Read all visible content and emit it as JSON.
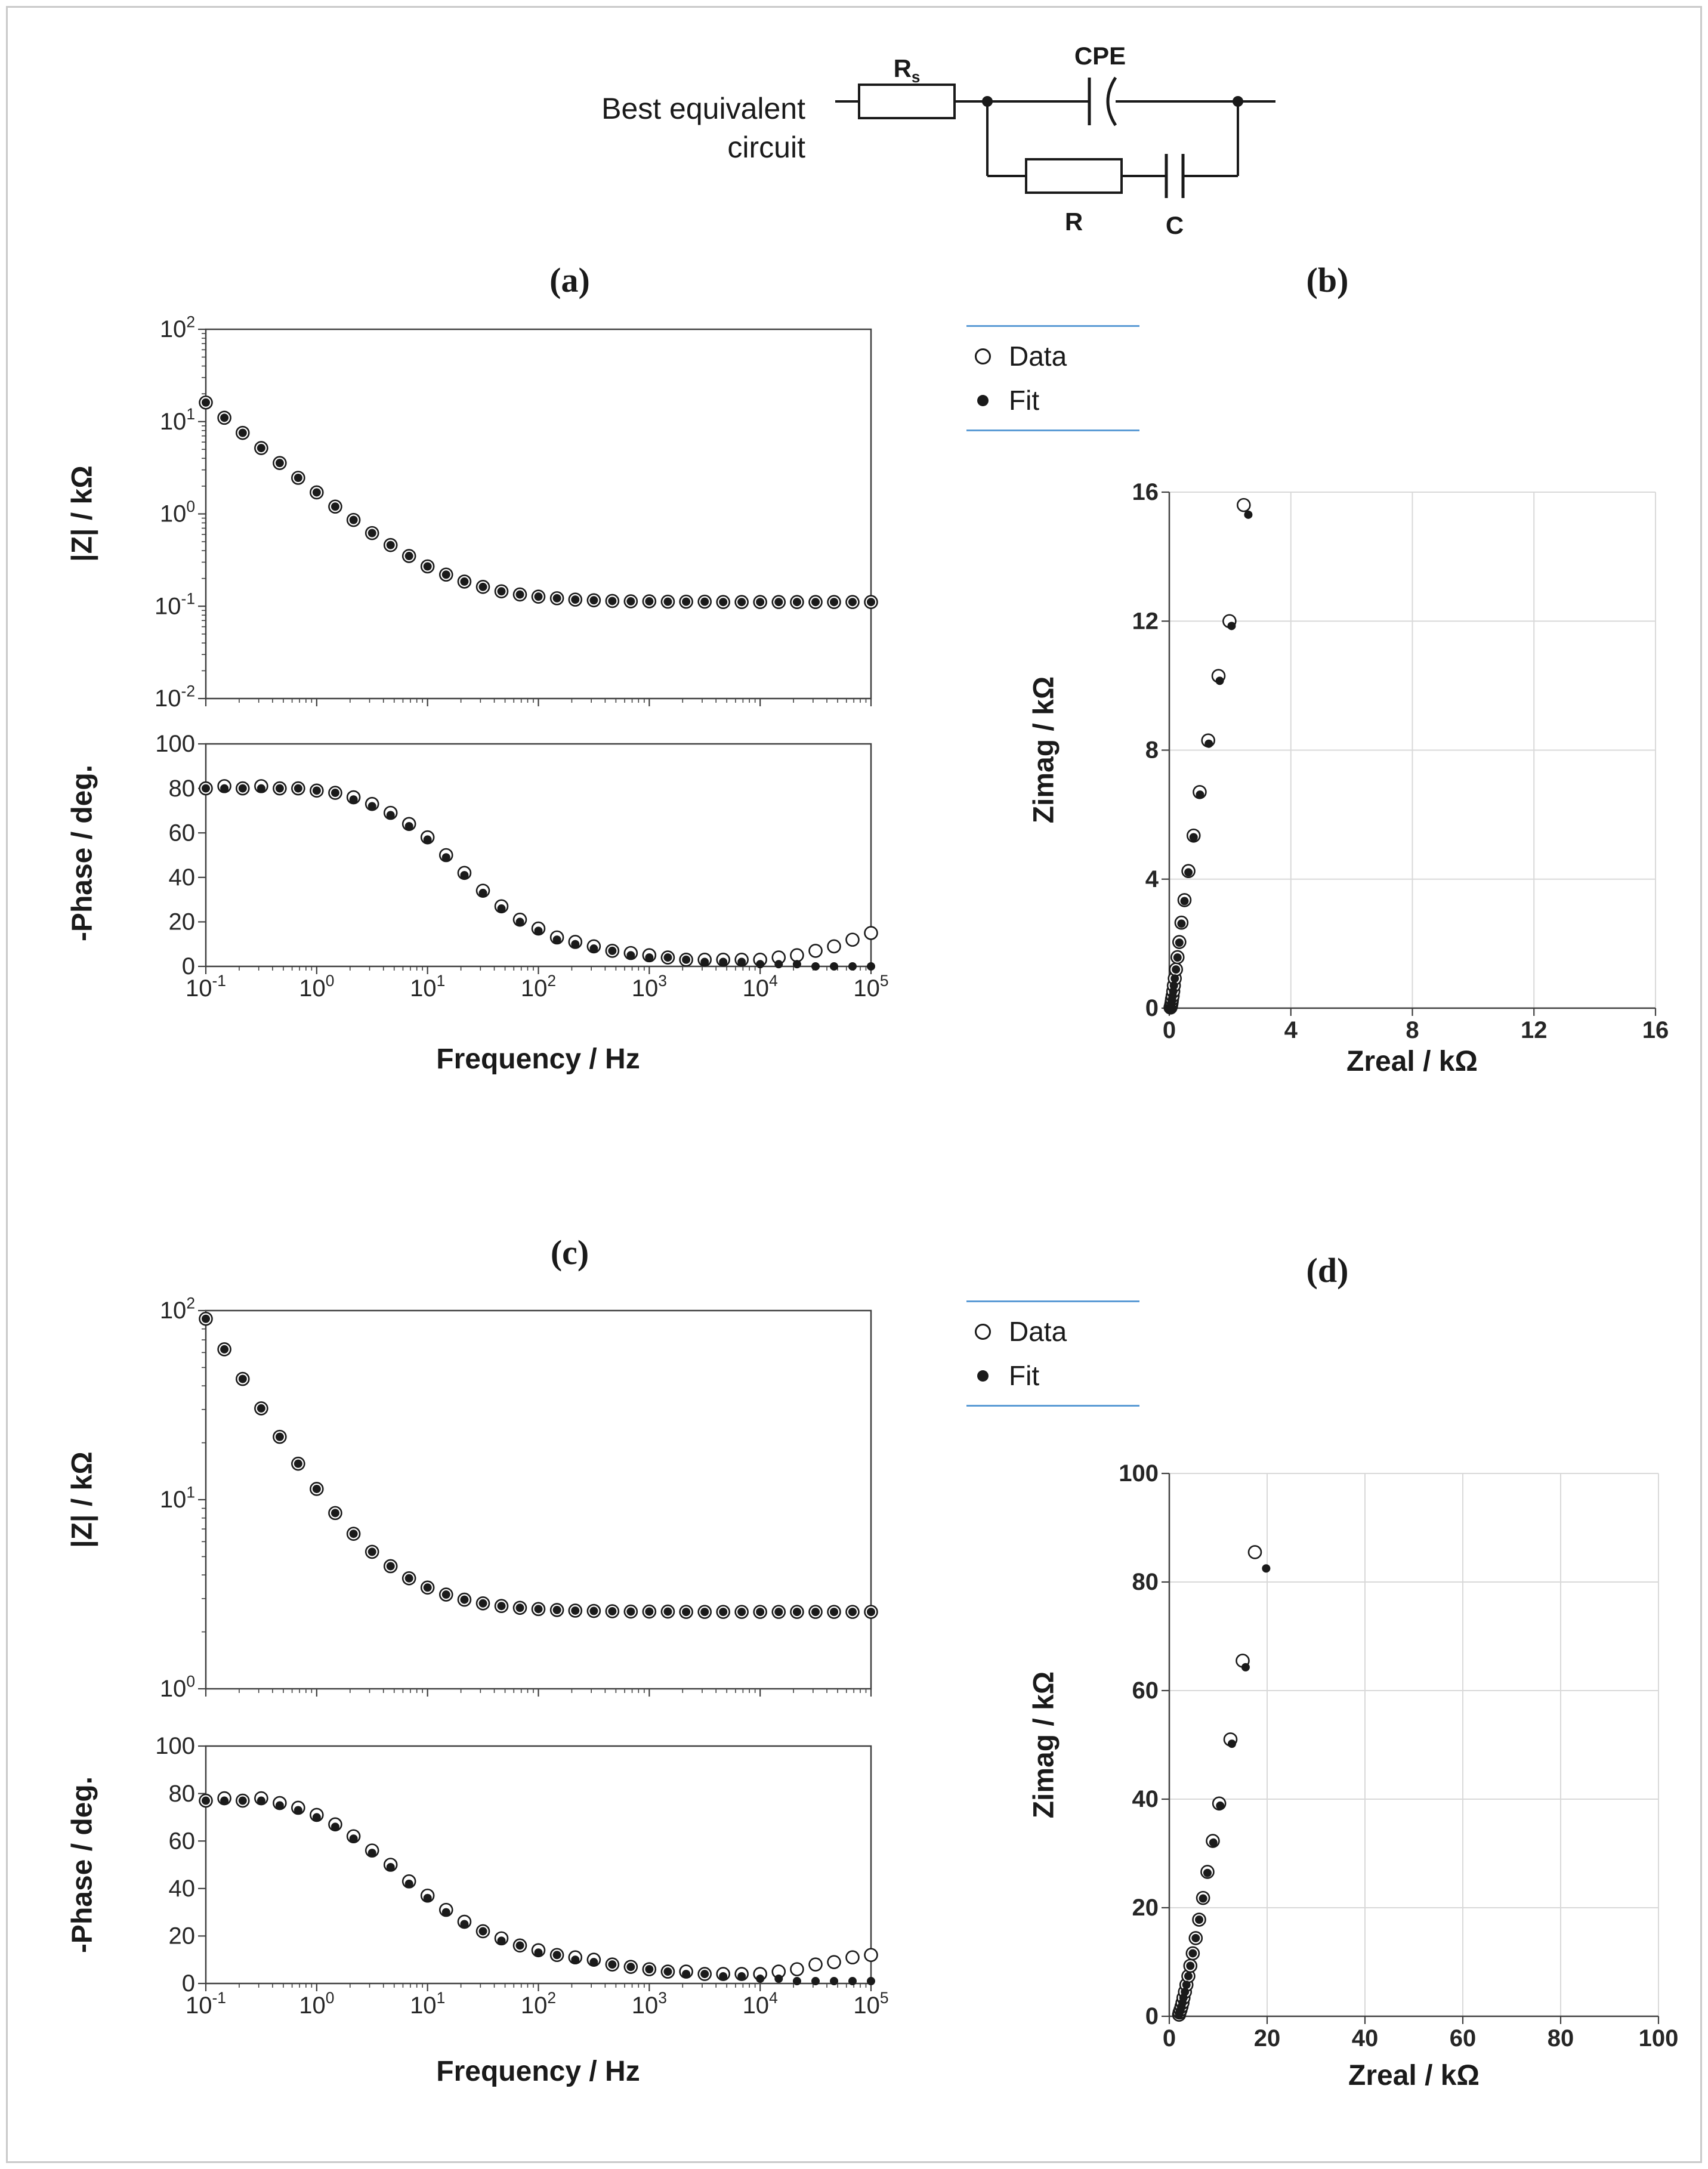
{
  "figure": {
    "circuit": {
      "caption_line1": "Best equivalent",
      "caption_line2": "circuit",
      "labels": {
        "rs_main": "R",
        "rs_sub": "s",
        "cpe": "CPE",
        "r": "R",
        "c": "C"
      }
    },
    "panel_labels": {
      "a": "(a)",
      "b": "(b)",
      "c": "(c)",
      "d": "(d)"
    }
  },
  "colors": {
    "legend_rule": "#5b9bd5",
    "marker": "#1a1a1a",
    "grid": "#d9d9d9",
    "axis": "#404040",
    "text": "#262626"
  },
  "chart_data": [
    {
      "id": "a_bode_magnitude",
      "type": "scatter",
      "panel": "a",
      "xscale": "log",
      "yscale": "log",
      "xlim": [
        -1,
        5
      ],
      "ylim": [
        -2,
        2
      ],
      "xticks_exp": [
        -1,
        0,
        1,
        2,
        3,
        4,
        5
      ],
      "yticks_exp": [
        -2,
        -1,
        0,
        1,
        2
      ],
      "show_x_labels": false,
      "box": true,
      "grid": false,
      "xlabel": "",
      "ylabel": "|Z| / kΩ",
      "x": [
        0.1,
        0.147,
        0.215,
        0.316,
        0.464,
        0.681,
        1,
        1.47,
        2.15,
        3.16,
        4.64,
        6.81,
        10,
        14.7,
        21.5,
        31.6,
        46.4,
        68.1,
        100,
        147,
        215,
        316,
        464,
        681,
        1000,
        1470,
        2150,
        3160,
        4640,
        6810,
        10000,
        14700,
        21500,
        31600,
        46400,
        68100,
        100000
      ],
      "series": [
        {
          "name": "Data",
          "marker": "open",
          "y": [
            16.1,
            11.0,
            7.55,
            5.17,
            3.56,
            2.46,
            1.71,
            1.2,
            0.86,
            0.62,
            0.46,
            0.35,
            0.27,
            0.22,
            0.185,
            0.162,
            0.145,
            0.134,
            0.127,
            0.122,
            0.118,
            0.116,
            0.114,
            0.113,
            0.113,
            0.112,
            0.112,
            0.112,
            0.111,
            0.111,
            0.111,
            0.111,
            0.111,
            0.111,
            0.111,
            0.111,
            0.111
          ]
        },
        {
          "name": "Fit",
          "marker": "filled",
          "y": [
            16.1,
            11.0,
            7.55,
            5.17,
            3.56,
            2.46,
            1.71,
            1.2,
            0.86,
            0.62,
            0.46,
            0.35,
            0.27,
            0.22,
            0.185,
            0.162,
            0.145,
            0.134,
            0.127,
            0.122,
            0.118,
            0.116,
            0.114,
            0.113,
            0.113,
            0.112,
            0.112,
            0.112,
            0.111,
            0.111,
            0.111,
            0.111,
            0.111,
            0.111,
            0.111,
            0.111,
            0.111
          ]
        }
      ]
    },
    {
      "id": "a_bode_phase",
      "type": "scatter",
      "panel": "a",
      "xscale": "log",
      "yscale": "linear",
      "xlim": [
        -1,
        5
      ],
      "ylim": [
        0,
        100
      ],
      "xticks_exp": [
        -1,
        0,
        1,
        2,
        3,
        4,
        5
      ],
      "yticks": [
        0,
        20,
        40,
        60,
        80,
        100
      ],
      "show_x_labels": true,
      "box": true,
      "grid": false,
      "xlabel": "Frequency / Hz",
      "ylabel": "-Phase / deg.",
      "x": [
        0.1,
        0.147,
        0.215,
        0.316,
        0.464,
        0.681,
        1,
        1.47,
        2.15,
        3.16,
        4.64,
        6.81,
        10,
        14.7,
        21.5,
        31.6,
        46.4,
        68.1,
        100,
        147,
        215,
        316,
        464,
        681,
        1000,
        1470,
        2150,
        3160,
        4640,
        6810,
        10000,
        14700,
        21500,
        31600,
        46400,
        68100,
        100000
      ],
      "series": [
        {
          "name": "Data",
          "marker": "open",
          "y": [
            80,
            81,
            80,
            81,
            80,
            80,
            79,
            78,
            76,
            73,
            69,
            64,
            58,
            50,
            42,
            34,
            27,
            21,
            17,
            13,
            11,
            9,
            7,
            6,
            5,
            4,
            3,
            3,
            3,
            3,
            3,
            4,
            5,
            7,
            9,
            12,
            15
          ]
        },
        {
          "name": "Fit",
          "marker": "filled",
          "y": [
            80,
            80,
            80,
            80,
            80,
            80,
            79,
            78,
            75,
            72,
            68,
            63,
            57,
            49,
            41,
            33,
            26,
            20,
            16,
            12,
            10,
            8,
            7,
            5,
            4,
            4,
            3,
            2,
            2,
            2,
            1,
            1,
            1,
            0,
            0,
            0,
            0
          ]
        }
      ]
    },
    {
      "id": "b_nyquist",
      "type": "scatter",
      "panel": "b",
      "xscale": "linear",
      "yscale": "linear",
      "xlim": [
        0,
        16
      ],
      "ylim": [
        0,
        16
      ],
      "xticks": [
        0,
        4,
        8,
        12,
        16
      ],
      "yticks": [
        0,
        4,
        8,
        12,
        16
      ],
      "show_x_labels": true,
      "box": false,
      "grid": true,
      "tick_bold": true,
      "xlabel": "Zreal / kΩ",
      "ylabel": "Zimag / kΩ",
      "series": [
        {
          "name": "Data",
          "marker": "open",
          "x": [
            0.04,
            0.05,
            0.06,
            0.07,
            0.08,
            0.09,
            0.11,
            0.13,
            0.15,
            0.18,
            0.22,
            0.27,
            0.33,
            0.4,
            0.5,
            0.63,
            0.8,
            1.0,
            1.28,
            1.62,
            1.98,
            2.45
          ],
          "y": [
            0.02,
            0.05,
            0.09,
            0.14,
            0.2,
            0.28,
            0.38,
            0.52,
            0.7,
            0.92,
            1.2,
            1.58,
            2.05,
            2.65,
            3.35,
            4.25,
            5.35,
            6.7,
            8.3,
            10.3,
            12.0,
            15.6
          ]
        },
        {
          "name": "Fit",
          "marker": "filled",
          "x": [
            0.04,
            0.05,
            0.06,
            0.07,
            0.08,
            0.09,
            0.11,
            0.13,
            0.15,
            0.18,
            0.22,
            0.27,
            0.33,
            0.4,
            0.5,
            0.63,
            0.8,
            1.01,
            1.3,
            1.66,
            2.05,
            2.6
          ],
          "y": [
            0.02,
            0.05,
            0.09,
            0.14,
            0.2,
            0.28,
            0.38,
            0.52,
            0.7,
            0.92,
            1.2,
            1.57,
            2.03,
            2.62,
            3.32,
            4.21,
            5.3,
            6.62,
            8.2,
            10.15,
            11.85,
            15.3
          ]
        }
      ]
    },
    {
      "id": "c_bode_magnitude",
      "type": "scatter",
      "panel": "c",
      "xscale": "log",
      "yscale": "log",
      "xlim": [
        -1,
        5
      ],
      "ylim": [
        0,
        2
      ],
      "xticks_exp": [
        -1,
        0,
        1,
        2,
        3,
        4,
        5
      ],
      "yticks_exp": [
        0,
        1,
        2
      ],
      "show_x_labels": false,
      "box": true,
      "grid": false,
      "xlabel": "",
      "ylabel": "|Z| / kΩ",
      "x": [
        0.1,
        0.147,
        0.215,
        0.316,
        0.464,
        0.681,
        1,
        1.47,
        2.15,
        3.16,
        4.64,
        6.81,
        10,
        14.7,
        21.5,
        31.6,
        46.4,
        68.1,
        100,
        147,
        215,
        316,
        464,
        681,
        1000,
        1470,
        2150,
        3160,
        4640,
        6810,
        10000,
        14700,
        21500,
        31600,
        46400,
        68100,
        100000
      ],
      "series": [
        {
          "name": "Data",
          "marker": "open",
          "y": [
            90.5,
            62.4,
            43.5,
            30.4,
            21.5,
            15.5,
            11.4,
            8.5,
            6.6,
            5.3,
            4.45,
            3.84,
            3.43,
            3.15,
            2.96,
            2.83,
            2.74,
            2.68,
            2.64,
            2.61,
            2.59,
            2.58,
            2.57,
            2.56,
            2.56,
            2.56,
            2.55,
            2.55,
            2.55,
            2.55,
            2.55,
            2.55,
            2.55,
            2.55,
            2.55,
            2.55,
            2.55
          ]
        },
        {
          "name": "Fit",
          "marker": "filled",
          "y": [
            90.5,
            62.4,
            43.5,
            30.4,
            21.5,
            15.5,
            11.4,
            8.5,
            6.6,
            5.3,
            4.45,
            3.84,
            3.43,
            3.15,
            2.96,
            2.83,
            2.74,
            2.68,
            2.64,
            2.61,
            2.59,
            2.58,
            2.57,
            2.56,
            2.56,
            2.56,
            2.55,
            2.55,
            2.55,
            2.55,
            2.55,
            2.55,
            2.55,
            2.55,
            2.55,
            2.55,
            2.55
          ]
        }
      ]
    },
    {
      "id": "c_bode_phase",
      "type": "scatter",
      "panel": "c",
      "xscale": "log",
      "yscale": "linear",
      "xlim": [
        -1,
        5
      ],
      "ylim": [
        0,
        100
      ],
      "xticks_exp": [
        -1,
        0,
        1,
        2,
        3,
        4,
        5
      ],
      "yticks": [
        0,
        20,
        40,
        60,
        80,
        100
      ],
      "show_x_labels": true,
      "box": true,
      "grid": false,
      "xlabel": "Frequency / Hz",
      "ylabel": "-Phase / deg.",
      "x": [
        0.1,
        0.147,
        0.215,
        0.316,
        0.464,
        0.681,
        1,
        1.47,
        2.15,
        3.16,
        4.64,
        6.81,
        10,
        14.7,
        21.5,
        31.6,
        46.4,
        68.1,
        100,
        147,
        215,
        316,
        464,
        681,
        1000,
        1470,
        2150,
        3160,
        4640,
        6810,
        10000,
        14700,
        21500,
        31600,
        46400,
        68100,
        100000
      ],
      "series": [
        {
          "name": "Data",
          "marker": "open",
          "y": [
            77,
            78,
            77,
            78,
            76,
            74,
            71,
            67,
            62,
            56,
            50,
            43,
            37,
            31,
            26,
            22,
            19,
            16,
            14,
            12,
            11,
            10,
            8,
            7,
            6,
            5,
            5,
            4,
            4,
            4,
            4,
            5,
            6,
            8,
            9,
            11,
            12
          ]
        },
        {
          "name": "Fit",
          "marker": "filled",
          "y": [
            77,
            77,
            77,
            77,
            75,
            73,
            70,
            66,
            61,
            55,
            49,
            42,
            36,
            30,
            25,
            22,
            18,
            16,
            13,
            12,
            10,
            9,
            8,
            7,
            6,
            5,
            4,
            4,
            3,
            3,
            2,
            2,
            1,
            1,
            1,
            1,
            1
          ]
        }
      ]
    },
    {
      "id": "d_nyquist",
      "type": "scatter",
      "panel": "d",
      "xscale": "linear",
      "yscale": "linear",
      "xlim": [
        0,
        100
      ],
      "ylim": [
        0,
        100
      ],
      "xticks": [
        0,
        20,
        40,
        60,
        80,
        100
      ],
      "yticks": [
        0,
        20,
        40,
        60,
        80,
        100
      ],
      "show_x_labels": true,
      "box": false,
      "grid": true,
      "tick_bold": true,
      "xlabel": "Zreal / kΩ",
      "ylabel": "Zimag / kΩ",
      "series": [
        {
          "name": "Data",
          "marker": "open",
          "x": [
            2.0,
            2.1,
            2.3,
            2.5,
            2.7,
            2.9,
            3.2,
            3.5,
            3.9,
            4.3,
            4.8,
            5.4,
            6.1,
            6.9,
            7.8,
            8.9,
            10.2,
            12.5,
            15.0,
            17.5
          ],
          "y": [
            0.3,
            0.7,
            1.2,
            1.8,
            2.5,
            3.4,
            4.5,
            5.8,
            7.4,
            9.3,
            11.6,
            14.4,
            17.8,
            21.8,
            26.6,
            32.3,
            39.2,
            51.0,
            65.5,
            85.5
          ]
        },
        {
          "name": "Fit",
          "marker": "filled",
          "x": [
            2.0,
            2.1,
            2.3,
            2.5,
            2.7,
            2.9,
            3.2,
            3.5,
            3.9,
            4.3,
            4.8,
            5.4,
            6.1,
            6.9,
            7.8,
            9.0,
            10.4,
            12.8,
            15.6,
            19.8
          ],
          "y": [
            0.3,
            0.7,
            1.2,
            1.8,
            2.5,
            3.4,
            4.5,
            5.8,
            7.4,
            9.3,
            11.6,
            14.4,
            17.8,
            21.7,
            26.4,
            32.0,
            38.8,
            50.2,
            64.3,
            82.5
          ]
        }
      ]
    }
  ]
}
